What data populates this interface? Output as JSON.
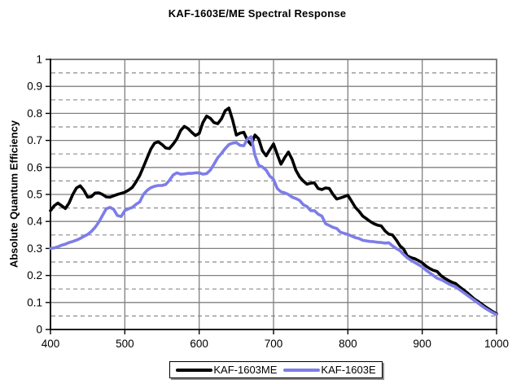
{
  "chart_data": {
    "type": "line",
    "title": "KAF-1603E/ME Spectral Response",
    "xlabel": "",
    "ylabel": "Absolute Quantum Efficiency",
    "xlim": [
      400,
      1000
    ],
    "ylim": [
      0,
      1
    ],
    "x_ticks": [
      400,
      500,
      600,
      700,
      800,
      900,
      1000
    ],
    "y_ticks": [
      0,
      0.1,
      0.2,
      0.3,
      0.4,
      0.5,
      0.6,
      0.7,
      0.8,
      0.9,
      1
    ],
    "y_tick_labels": [
      "0",
      "0.1",
      "0.2",
      "0.3",
      "0.4",
      "0.5",
      "0.6",
      "0.7",
      "0.8",
      "0.9",
      "1"
    ],
    "y_minor_gridlines": [
      0.05,
      0.15,
      0.25,
      0.35,
      0.45,
      0.55,
      0.65,
      0.75,
      0.85,
      0.95
    ],
    "grid": "on",
    "legend_position": "bottom-center",
    "colors": {
      "grid_solid": "#808080",
      "grid_dashed": "#8c8c8c",
      "frame": "#808080",
      "axis": "#000000"
    },
    "series": [
      {
        "name": "KAF-1603ME",
        "color": "#000000",
        "points": [
          [
            400,
            0.44
          ],
          [
            405,
            0.458
          ],
          [
            410,
            0.468
          ],
          [
            415,
            0.458
          ],
          [
            420,
            0.448
          ],
          [
            425,
            0.468
          ],
          [
            430,
            0.5
          ],
          [
            435,
            0.524
          ],
          [
            440,
            0.532
          ],
          [
            445,
            0.515
          ],
          [
            450,
            0.49
          ],
          [
            455,
            0.492
          ],
          [
            460,
            0.505
          ],
          [
            465,
            0.506
          ],
          [
            470,
            0.5
          ],
          [
            475,
            0.491
          ],
          [
            480,
            0.49
          ],
          [
            485,
            0.495
          ],
          [
            490,
            0.5
          ],
          [
            495,
            0.504
          ],
          [
            500,
            0.508
          ],
          [
            505,
            0.516
          ],
          [
            510,
            0.526
          ],
          [
            515,
            0.546
          ],
          [
            520,
            0.57
          ],
          [
            525,
            0.602
          ],
          [
            530,
            0.635
          ],
          [
            535,
            0.668
          ],
          [
            540,
            0.69
          ],
          [
            545,
            0.695
          ],
          [
            550,
            0.685
          ],
          [
            555,
            0.672
          ],
          [
            560,
            0.67
          ],
          [
            565,
            0.686
          ],
          [
            570,
            0.706
          ],
          [
            575,
            0.736
          ],
          [
            580,
            0.752
          ],
          [
            585,
            0.744
          ],
          [
            590,
            0.73
          ],
          [
            595,
            0.718
          ],
          [
            600,
            0.726
          ],
          [
            605,
            0.766
          ],
          [
            610,
            0.79
          ],
          [
            615,
            0.782
          ],
          [
            620,
            0.766
          ],
          [
            625,
            0.762
          ],
          [
            630,
            0.78
          ],
          [
            635,
            0.81
          ],
          [
            640,
            0.82
          ],
          [
            645,
            0.775
          ],
          [
            650,
            0.72
          ],
          [
            655,
            0.727
          ],
          [
            660,
            0.73
          ],
          [
            665,
            0.7
          ],
          [
            670,
            0.684
          ],
          [
            675,
            0.72
          ],
          [
            680,
            0.706
          ],
          [
            685,
            0.662
          ],
          [
            690,
            0.643
          ],
          [
            695,
            0.665
          ],
          [
            700,
            0.687
          ],
          [
            705,
            0.648
          ],
          [
            710,
            0.612
          ],
          [
            715,
            0.636
          ],
          [
            720,
            0.657
          ],
          [
            725,
            0.63
          ],
          [
            730,
            0.59
          ],
          [
            735,
            0.565
          ],
          [
            740,
            0.55
          ],
          [
            745,
            0.538
          ],
          [
            750,
            0.542
          ],
          [
            755,
            0.543
          ],
          [
            760,
            0.522
          ],
          [
            765,
            0.518
          ],
          [
            770,
            0.524
          ],
          [
            775,
            0.522
          ],
          [
            780,
            0.5
          ],
          [
            785,
            0.483
          ],
          [
            790,
            0.487
          ],
          [
            795,
            0.492
          ],
          [
            800,
            0.497
          ],
          [
            805,
            0.475
          ],
          [
            810,
            0.452
          ],
          [
            815,
            0.438
          ],
          [
            820,
            0.42
          ],
          [
            825,
            0.41
          ],
          [
            830,
            0.4
          ],
          [
            835,
            0.392
          ],
          [
            840,
            0.386
          ],
          [
            845,
            0.383
          ],
          [
            850,
            0.365
          ],
          [
            855,
            0.353
          ],
          [
            860,
            0.35
          ],
          [
            865,
            0.332
          ],
          [
            870,
            0.31
          ],
          [
            875,
            0.298
          ],
          [
            880,
            0.272
          ],
          [
            885,
            0.266
          ],
          [
            890,
            0.262
          ],
          [
            895,
            0.255
          ],
          [
            900,
            0.247
          ],
          [
            905,
            0.235
          ],
          [
            910,
            0.226
          ],
          [
            915,
            0.219
          ],
          [
            920,
            0.215
          ],
          [
            925,
            0.2
          ],
          [
            930,
            0.19
          ],
          [
            935,
            0.182
          ],
          [
            940,
            0.175
          ],
          [
            945,
            0.17
          ],
          [
            950,
            0.158
          ],
          [
            955,
            0.148
          ],
          [
            960,
            0.137
          ],
          [
            965,
            0.125
          ],
          [
            970,
            0.113
          ],
          [
            975,
            0.104
          ],
          [
            980,
            0.094
          ],
          [
            985,
            0.084
          ],
          [
            990,
            0.075
          ],
          [
            995,
            0.066
          ],
          [
            1000,
            0.058
          ]
        ]
      },
      {
        "name": "KAF-1603E",
        "color": "#7d7de8",
        "points": [
          [
            400,
            0.3
          ],
          [
            405,
            0.302
          ],
          [
            410,
            0.306
          ],
          [
            415,
            0.312
          ],
          [
            420,
            0.316
          ],
          [
            425,
            0.322
          ],
          [
            430,
            0.326
          ],
          [
            435,
            0.331
          ],
          [
            440,
            0.337
          ],
          [
            445,
            0.345
          ],
          [
            450,
            0.352
          ],
          [
            455,
            0.363
          ],
          [
            460,
            0.378
          ],
          [
            465,
            0.398
          ],
          [
            470,
            0.422
          ],
          [
            475,
            0.447
          ],
          [
            480,
            0.452
          ],
          [
            485,
            0.445
          ],
          [
            490,
            0.422
          ],
          [
            495,
            0.418
          ],
          [
            500,
            0.44
          ],
          [
            505,
            0.447
          ],
          [
            510,
            0.452
          ],
          [
            515,
            0.463
          ],
          [
            520,
            0.472
          ],
          [
            525,
            0.5
          ],
          [
            530,
            0.515
          ],
          [
            535,
            0.525
          ],
          [
            540,
            0.53
          ],
          [
            545,
            0.533
          ],
          [
            550,
            0.533
          ],
          [
            555,
            0.537
          ],
          [
            560,
            0.552
          ],
          [
            565,
            0.572
          ],
          [
            570,
            0.58
          ],
          [
            575,
            0.575
          ],
          [
            580,
            0.576
          ],
          [
            585,
            0.578
          ],
          [
            590,
            0.578
          ],
          [
            595,
            0.58
          ],
          [
            600,
            0.58
          ],
          [
            605,
            0.575
          ],
          [
            610,
            0.577
          ],
          [
            615,
            0.59
          ],
          [
            620,
            0.612
          ],
          [
            625,
            0.636
          ],
          [
            630,
            0.652
          ],
          [
            635,
            0.67
          ],
          [
            640,
            0.685
          ],
          [
            645,
            0.69
          ],
          [
            650,
            0.692
          ],
          [
            655,
            0.682
          ],
          [
            660,
            0.68
          ],
          [
            665,
            0.705
          ],
          [
            670,
            0.714
          ],
          [
            675,
            0.645
          ],
          [
            680,
            0.608
          ],
          [
            685,
            0.602
          ],
          [
            690,
            0.59
          ],
          [
            695,
            0.568
          ],
          [
            700,
            0.556
          ],
          [
            705,
            0.522
          ],
          [
            710,
            0.51
          ],
          [
            715,
            0.506
          ],
          [
            720,
            0.5
          ],
          [
            725,
            0.49
          ],
          [
            730,
            0.485
          ],
          [
            735,
            0.478
          ],
          [
            740,
            0.462
          ],
          [
            745,
            0.455
          ],
          [
            750,
            0.44
          ],
          [
            755,
            0.44
          ],
          [
            760,
            0.427
          ],
          [
            765,
            0.42
          ],
          [
            770,
            0.392
          ],
          [
            775,
            0.385
          ],
          [
            780,
            0.378
          ],
          [
            785,
            0.374
          ],
          [
            790,
            0.36
          ],
          [
            795,
            0.356
          ],
          [
            800,
            0.352
          ],
          [
            805,
            0.346
          ],
          [
            810,
            0.34
          ],
          [
            815,
            0.337
          ],
          [
            820,
            0.33
          ],
          [
            825,
            0.328
          ],
          [
            830,
            0.326
          ],
          [
            835,
            0.325
          ],
          [
            840,
            0.323
          ],
          [
            845,
            0.322
          ],
          [
            850,
            0.32
          ],
          [
            855,
            0.321
          ],
          [
            860,
            0.31
          ],
          [
            865,
            0.3
          ],
          [
            870,
            0.292
          ],
          [
            875,
            0.278
          ],
          [
            880,
            0.265
          ],
          [
            885,
            0.256
          ],
          [
            890,
            0.248
          ],
          [
            895,
            0.24
          ],
          [
            900,
            0.232
          ],
          [
            905,
            0.22
          ],
          [
            910,
            0.21
          ],
          [
            915,
            0.2
          ],
          [
            920,
            0.19
          ],
          [
            925,
            0.185
          ],
          [
            930,
            0.178
          ],
          [
            935,
            0.17
          ],
          [
            940,
            0.163
          ],
          [
            945,
            0.158
          ],
          [
            950,
            0.148
          ],
          [
            955,
            0.138
          ],
          [
            960,
            0.128
          ],
          [
            965,
            0.118
          ],
          [
            970,
            0.108
          ],
          [
            975,
            0.098
          ],
          [
            980,
            0.088
          ],
          [
            985,
            0.078
          ],
          [
            990,
            0.07
          ],
          [
            995,
            0.062
          ],
          [
            1000,
            0.055
          ]
        ]
      }
    ]
  }
}
